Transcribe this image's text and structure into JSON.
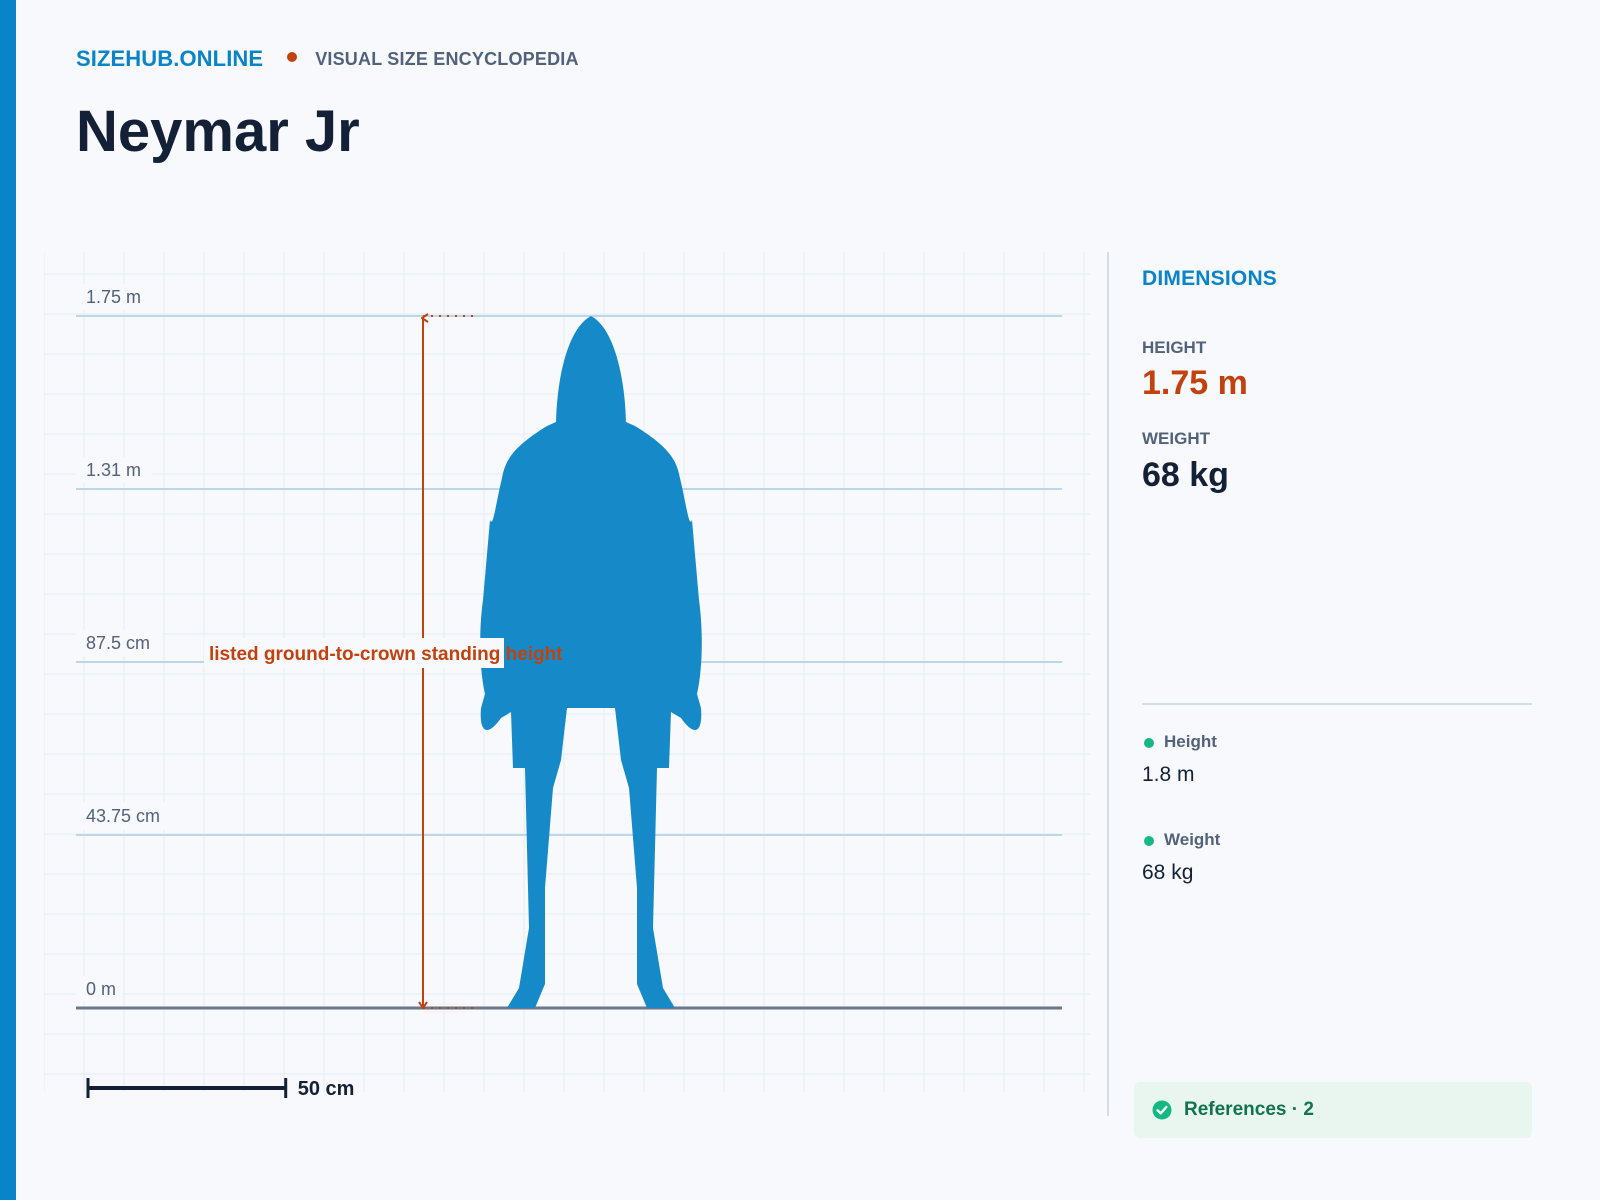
{
  "header": {
    "site_name": "SIZEHUB.ONLINE",
    "tagline": "VISUAL SIZE ENCYCLOPEDIA"
  },
  "title": "Neymar Jr",
  "chart_data": {
    "type": "diagram",
    "y_axis": {
      "min_m": 0,
      "max_m": 1.75,
      "ticks": [
        {
          "value_m": 1.75,
          "label": "1.75 m"
        },
        {
          "value_m": 1.3125,
          "label": "1.31 m"
        },
        {
          "value_m": 0.875,
          "label": "87.5 cm"
        },
        {
          "value_m": 0.4375,
          "label": "43.75 cm"
        },
        {
          "value_m": 0,
          "label": "0 m"
        }
      ]
    },
    "subject_height_m": 1.75,
    "annotation": "listed ground-to-crown standing height",
    "scale_bar": {
      "value_m": 0.5,
      "label": "50 cm"
    },
    "colors": {
      "silhouette": "#168ac8",
      "measure": "#c2410c",
      "grid": "#e6edf3",
      "tick_line": "#bdd7e8",
      "ground": "#6b788c"
    }
  },
  "panel": {
    "heading": "DIMENSIONS",
    "height_label": "HEIGHT",
    "height_value": "1.75 m",
    "weight_label": "WEIGHT",
    "weight_value": "68 kg",
    "sources": [
      {
        "label": "Height",
        "value": "1.8 m"
      },
      {
        "label": "Weight",
        "value": "68 kg"
      }
    ],
    "references_label": "References · 2"
  },
  "colors": {
    "accent": "#0a84c8",
    "highlight": "#c2410c",
    "source_dot": "#14b883",
    "references_bg": "#e8f6ef"
  },
  "icons": {
    "references": "check-circle-icon"
  }
}
